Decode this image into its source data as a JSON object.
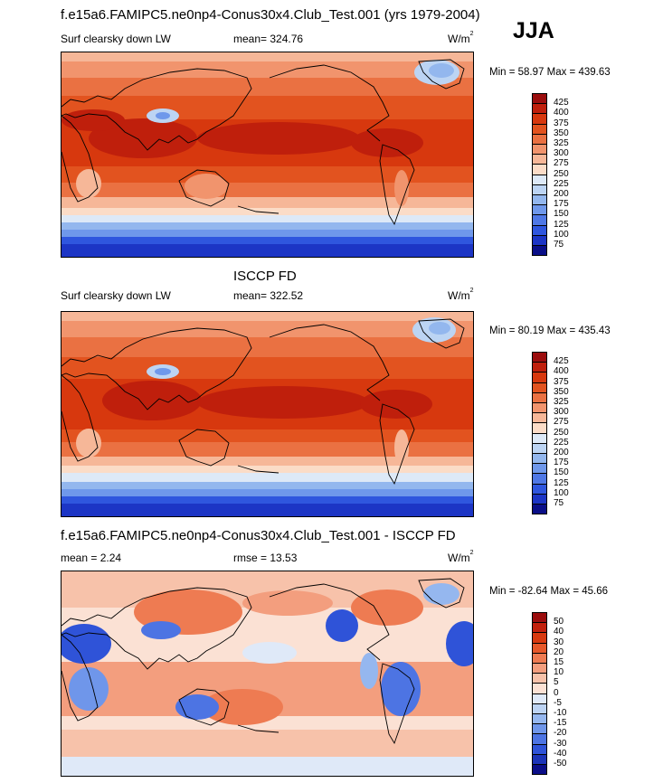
{
  "panel1": {
    "title": "f.e15a6.FAMIPC5.ne0np4-Conus30x4.Club_Test.001 (yrs 1979-2004)",
    "season": "JJA",
    "variable": "Surf clearsky down LW",
    "mean": "mean= 324.76",
    "units": "W/m",
    "units_sup": "2",
    "minmax": "Min =  58.97 Max = 439.63",
    "colorbar": {
      "ticks": [
        "425",
        "400",
        "375",
        "350",
        "325",
        "300",
        "275",
        "250",
        "225",
        "200",
        "175",
        "150",
        "125",
        "100",
        "75"
      ],
      "colors": [
        "#9b0d0d",
        "#bf1f0c",
        "#d7380e",
        "#e2531f",
        "#ea7142",
        "#f1946d",
        "#f6b798",
        "#fbdcc7",
        "#dde9f7",
        "#bcd4f3",
        "#93b7ee",
        "#6f98eb",
        "#4f78e6",
        "#2f56de",
        "#1c35c5",
        "#0a0f88"
      ]
    }
  },
  "panel2": {
    "title": "ISCCP FD",
    "variable": "Surf clearsky down LW",
    "mean": "mean= 322.52",
    "units": "W/m",
    "units_sup": "2",
    "minmax": "Min =  80.19 Max = 435.43",
    "colorbar": {
      "ticks": [
        "425",
        "400",
        "375",
        "350",
        "325",
        "300",
        "275",
        "250",
        "225",
        "200",
        "175",
        "150",
        "125",
        "100",
        "75"
      ],
      "colors": [
        "#9b0d0d",
        "#bf1f0c",
        "#d7380e",
        "#e2531f",
        "#ea7142",
        "#f1946d",
        "#f6b798",
        "#fbdcc7",
        "#dde9f7",
        "#bcd4f3",
        "#93b7ee",
        "#6f98eb",
        "#4f78e6",
        "#2f56de",
        "#1c35c5",
        "#0a0f88"
      ]
    }
  },
  "panel3": {
    "title": "f.e15a6.FAMIPC5.ne0np4-Conus30x4.Club_Test.001 - ISCCP FD",
    "mean": "mean =   2.24",
    "rmse": "rmse =  13.53",
    "units": "W/m",
    "units_sup": "2",
    "minmax": "Min = -82.64 Max =  45.66",
    "colorbar": {
      "ticks": [
        "50",
        "40",
        "30",
        "20",
        "15",
        "10",
        "5",
        "0",
        "-5",
        "-10",
        "-15",
        "-20",
        "-30",
        "-40",
        "-50"
      ],
      "colors": [
        "#9b0d0d",
        "#c2200c",
        "#d8390f",
        "#e6582a",
        "#ee7b52",
        "#f39e7e",
        "#f7c2aa",
        "#fbe1d4",
        "#dfe9f8",
        "#bcd3f3",
        "#95b7ef",
        "#6f96ea",
        "#4d74e3",
        "#2f53d8",
        "#1c34b8",
        "#0b0e88"
      ]
    }
  }
}
